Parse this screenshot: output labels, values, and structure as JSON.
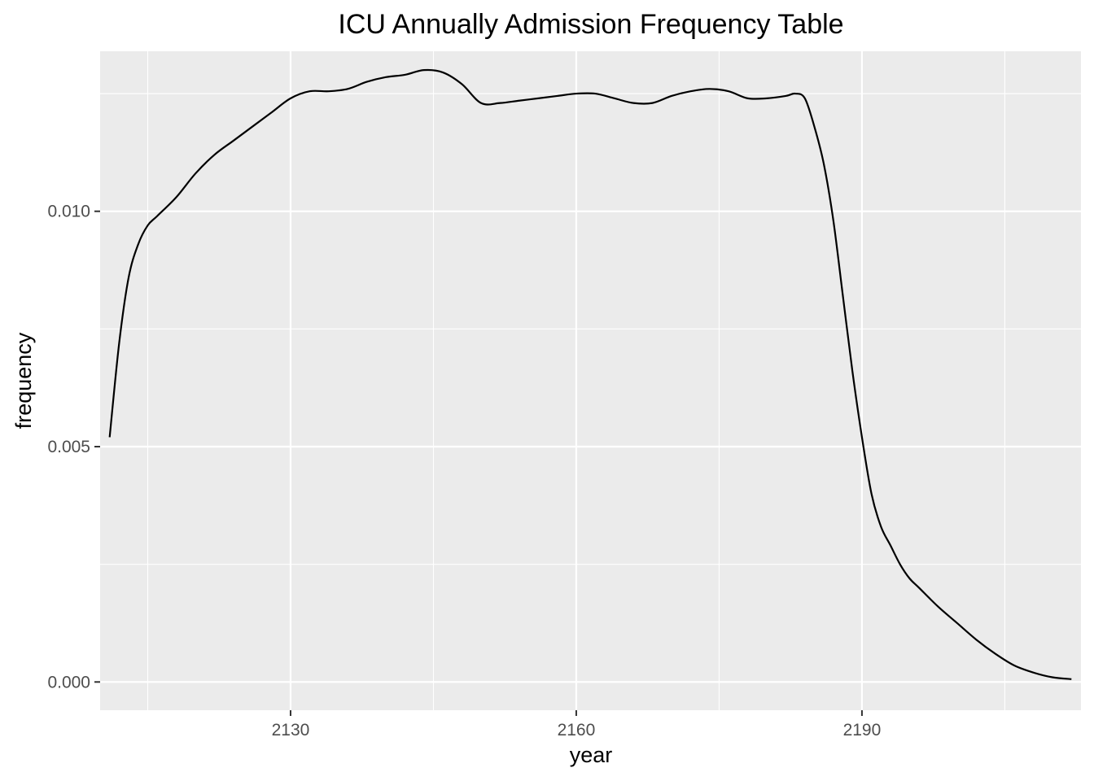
{
  "chart_data": {
    "type": "line",
    "title": "ICU Annually Admission Frequency Table",
    "xlabel": "year",
    "ylabel": "frequency",
    "xlim": [
      2110,
      2213
    ],
    "ylim": [
      -0.0006,
      0.0134
    ],
    "x_ticks": [
      2130,
      2160,
      2190
    ],
    "x_tick_labels": [
      "2130",
      "2160",
      "2190"
    ],
    "x_minor_ticks": [
      2115,
      2145,
      2175,
      2205
    ],
    "y_ticks": [
      0.0,
      0.005,
      0.01
    ],
    "y_tick_labels": [
      "0.000",
      "0.005",
      "0.010"
    ],
    "y_minor_ticks": [
      0.0025,
      0.0075,
      0.0125
    ],
    "grid": true,
    "legend": "none",
    "colors": {
      "panel": "#ebebeb",
      "grid": "#ffffff",
      "line": "#000000",
      "tick_text": "#4d4d4d"
    },
    "series": [
      {
        "x": [
          2111,
          2112,
          2113,
          2114,
          2115,
          2116,
          2118,
          2120,
          2122,
          2124,
          2126,
          2128,
          2130,
          2132,
          2134,
          2136,
          2138,
          2140,
          2142,
          2144,
          2146,
          2148,
          2150,
          2152,
          2154,
          2156,
          2158,
          2160,
          2162,
          2164,
          2166,
          2168,
          2170,
          2172,
          2174,
          2176,
          2178,
          2180,
          2182,
          2183,
          2184,
          2185,
          2186,
          2187,
          2188,
          2189,
          2190,
          2191,
          2192,
          2193,
          2194,
          2195,
          2196,
          2198,
          2200,
          2202,
          2204,
          2206,
          2208,
          2210,
          2212
        ],
        "y": [
          0.0052,
          0.0072,
          0.0086,
          0.0093,
          0.0097,
          0.0099,
          0.0103,
          0.0108,
          0.0112,
          0.0115,
          0.0118,
          0.0121,
          0.0124,
          0.01255,
          0.01255,
          0.0126,
          0.01275,
          0.01285,
          0.0129,
          0.013,
          0.01295,
          0.0127,
          0.0123,
          0.0123,
          0.01235,
          0.0124,
          0.01245,
          0.0125,
          0.0125,
          0.0124,
          0.0123,
          0.0123,
          0.01245,
          0.01255,
          0.0126,
          0.01255,
          0.0124,
          0.0124,
          0.01245,
          0.0125,
          0.0124,
          0.0118,
          0.011,
          0.0098,
          0.0082,
          0.0066,
          0.0052,
          0.004,
          0.0033,
          0.0029,
          0.0025,
          0.0022,
          0.002,
          0.0016,
          0.00125,
          0.0009,
          0.0006,
          0.00035,
          0.0002,
          0.0001,
          6e-05
        ]
      }
    ]
  }
}
